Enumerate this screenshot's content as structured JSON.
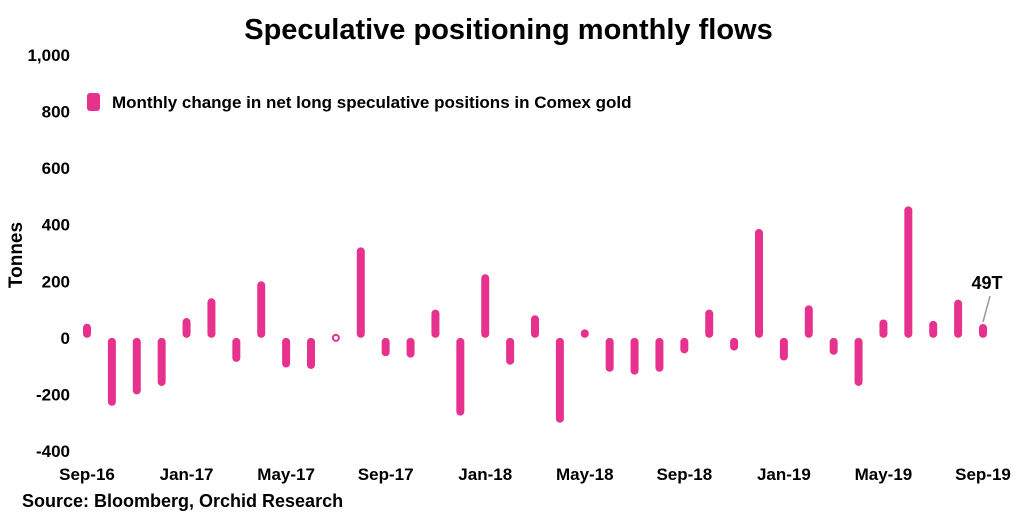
{
  "chart_data": {
    "type": "bar",
    "title": "Speculative positioning monthly flows",
    "ylabel": "Tonnes",
    "xlabel": "",
    "ylim": [
      -400,
      1000
    ],
    "yticks": [
      -400,
      -200,
      0,
      200,
      400,
      600,
      800,
      1000
    ],
    "ytick_labels": [
      "-400",
      "-200",
      "0",
      "200",
      "400",
      "600",
      "800",
      "1,000"
    ],
    "xtick_labels": [
      "Sep-16",
      "Jan-17",
      "May-17",
      "Sep-17",
      "Jan-18",
      "May-18",
      "Sep-18",
      "Jan-19",
      "May-19",
      "Sep-19"
    ],
    "xtick_every": 4,
    "grid": false,
    "legend_position": "top-left",
    "series": [
      {
        "name": "Monthly change in net long speculative positions in Comex gold",
        "color": "#e7318f",
        "categories": [
          "Sep-16",
          "Oct-16",
          "Nov-16",
          "Dec-16",
          "Jan-17",
          "Feb-17",
          "Mar-17",
          "Apr-17",
          "May-17",
          "Jun-17",
          "Jul-17",
          "Aug-17",
          "Sep-17",
          "Oct-17",
          "Nov-17",
          "Dec-17",
          "Jan-18",
          "Feb-18",
          "Mar-18",
          "Apr-18",
          "May-18",
          "Jun-18",
          "Jul-18",
          "Aug-18",
          "Sep-18",
          "Oct-18",
          "Nov-18",
          "Dec-18",
          "Jan-19",
          "Feb-19",
          "Mar-19",
          "Apr-19",
          "May-19",
          "Jun-19",
          "Jul-19",
          "Aug-19",
          "Sep-19"
        ],
        "values": [
          50,
          -240,
          -200,
          -170,
          70,
          140,
          -85,
          200,
          -105,
          -110,
          0,
          320,
          -65,
          -70,
          100,
          -275,
          225,
          -95,
          80,
          -300,
          30,
          -120,
          -130,
          -120,
          -55,
          100,
          -45,
          385,
          -80,
          115,
          -60,
          -170,
          65,
          465,
          60,
          135,
          49
        ]
      }
    ],
    "annotations": [
      {
        "text": "49T",
        "category": "Sep-19"
      }
    ]
  },
  "source": "Source: Bloomberg, Orchid Research"
}
